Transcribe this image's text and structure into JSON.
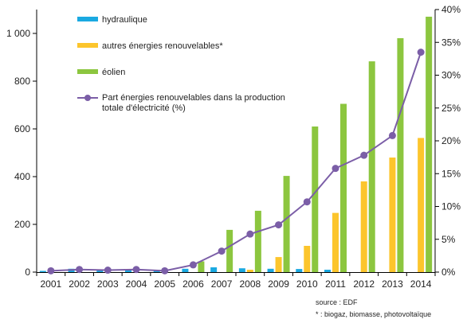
{
  "chart_data": {
    "type": "bar",
    "categories": [
      "2001",
      "2002",
      "2003",
      "2004",
      "2005",
      "2006",
      "2007",
      "2008",
      "2009",
      "2010",
      "2011",
      "2012",
      "2013",
      "2014"
    ],
    "series": [
      {
        "name": "hydraulique",
        "type": "bar",
        "axis": "left",
        "color": "#1aa9e1",
        "values": [
          5,
          14,
          8,
          10,
          5,
          14,
          20,
          16,
          14,
          13,
          10,
          0,
          0,
          0
        ]
      },
      {
        "name": "autres énergies renouvelables*",
        "type": "bar",
        "axis": "left",
        "color": "#fcc52c",
        "values": [
          0,
          0,
          0,
          0,
          0,
          0,
          0,
          10,
          63,
          110,
          248,
          380,
          480,
          562
        ]
      },
      {
        "name": "éolien",
        "type": "bar",
        "axis": "left",
        "color": "#8cc63f",
        "values": [
          0,
          0,
          0,
          0,
          0,
          45,
          177,
          257,
          403,
          610,
          705,
          883,
          980,
          1070
        ]
      },
      {
        "name": "Part énergies renouvelables dans la production totale d'électricité (%)",
        "type": "line",
        "axis": "right",
        "color": "#7b5ea7",
        "values": [
          0.2,
          0.4,
          0.3,
          0.4,
          0.2,
          1.1,
          3.2,
          5.8,
          7.2,
          10.7,
          15.8,
          17.8,
          20.8,
          33.5
        ]
      }
    ],
    "y_left": {
      "min": 0,
      "max": 1100,
      "ticks": [
        0,
        200,
        400,
        600,
        800,
        1000
      ],
      "tick_labels": [
        "0",
        "200",
        "400",
        "600",
        "800",
        "1 000"
      ]
    },
    "y_right": {
      "min": 0,
      "max": 40,
      "ticks": [
        0,
        5,
        10,
        15,
        20,
        25,
        30,
        35,
        40
      ],
      "tick_labels": [
        "0%",
        "5%",
        "10%",
        "15%",
        "20%",
        "25%",
        "30%",
        "35%",
        "40%"
      ]
    },
    "legend_position": "top-left",
    "title": "",
    "xlabel": "",
    "ylabel": ""
  },
  "legend": {
    "hydraulique": "hydraulique",
    "autres": "autres énergies renouvelables*",
    "eolien": "éolien",
    "part_line1": "Part énergies renouvelables dans la production",
    "part_line2": "totale d'électricité (%)"
  },
  "notes": {
    "source": "source : EDF",
    "footnote": "* : biogaz, biomasse, photovoltaïque"
  }
}
